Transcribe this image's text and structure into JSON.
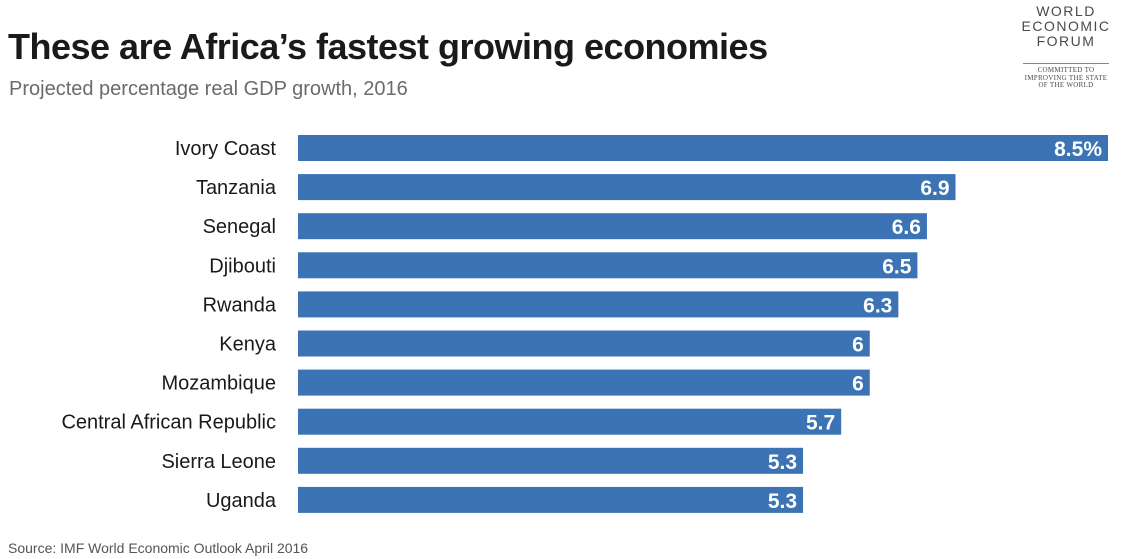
{
  "header": {
    "title": "These are Africa’s fastest growing economies",
    "subtitle": "Projected percentage real GDP growth, 2016"
  },
  "footer": {
    "source": "Source: IMF World Economic Outlook April 2016"
  },
  "logo": {
    "lines": [
      "WORLD",
      "ECONOMIC",
      "FORUM"
    ],
    "tagline": [
      "COMMITTED TO",
      "IMPROVING THE STATE",
      "OF THE WORLD"
    ]
  },
  "colors": {
    "bar": "#3c73b4",
    "bar_label": "#ffffff"
  },
  "chart_data": {
    "type": "bar",
    "orientation": "horizontal",
    "title": "These are Africa’s fastest growing economies",
    "subtitle": "Projected percentage real GDP growth, 2016",
    "categories": [
      "Ivory Coast",
      "Tanzania",
      "Senegal",
      "Djibouti",
      "Rwanda",
      "Kenya",
      "Mozambique",
      "Central African Republic",
      "Sierra Leone",
      "Uganda"
    ],
    "values": [
      8.5,
      6.9,
      6.6,
      6.5,
      6.3,
      6,
      6,
      5.7,
      5.3,
      5.3
    ],
    "value_labels": [
      "8.5%",
      "6.9",
      "6.6",
      "6.5",
      "6.3",
      "6",
      "6",
      "5.7",
      "5.3",
      "5.3"
    ],
    "xlim": [
      0,
      8.5
    ],
    "grid": false,
    "legend": "none"
  }
}
